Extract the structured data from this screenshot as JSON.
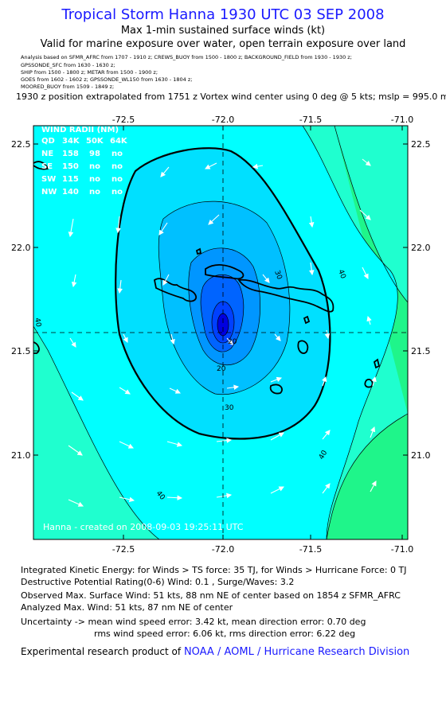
{
  "title": "Tropical Storm Hanna 1930 UTC 03 SEP 2008",
  "subtitle1": "Max 1-min sustained surface winds (kt)",
  "subtitle2": "Valid for marine exposure over water, open terrain exposure over land",
  "analysis_lines": [
    "Analysis based on  SFMR_AFRC from 1707 - 1910 z;  CREWS_BUOY from 1500 - 1800 z;  BACKGROUND_FIELD from 1930 - 1930 z;",
    "GPSSONDE_SFC from 1630 - 1630 z;",
    "SHIP from 1500 - 1800 z;  METAR from 1500 - 1900 z;",
    "GOES from 1602 - 1602 z;  GPSSONDE_WL150 from 1630 - 1804 z;",
    "MOORED_BUOY from 1509 - 1849 z;"
  ],
  "position_line": "1930 z position extrapolated from 1751 z Vortex wind center using 0 deg @ 5 kts; mslp = 995.0 mb",
  "map": {
    "lon_ticks": [
      "-72.5",
      "-72.0",
      "-71.5",
      "-71.0"
    ],
    "lat_ticks": [
      "22.5",
      "22.0",
      "21.5",
      "21.0"
    ],
    "contour_labels": [
      "30",
      "40",
      "40",
      "40",
      "40",
      "20",
      "30",
      "20"
    ],
    "watermark": "Hanna - created on 2008-09-03 19:25:11 UTC",
    "wind_radii": {
      "header": "WIND RADII (NM)",
      "columns": [
        "QD",
        "34K",
        "50K",
        "64K"
      ],
      "rows": [
        [
          "NE",
          "158",
          "98",
          "no"
        ],
        [
          "SE",
          "150",
          "no",
          "no"
        ],
        [
          "SW",
          "115",
          "no",
          "no"
        ],
        [
          "NW",
          "140",
          "no",
          "no"
        ]
      ]
    },
    "colors": {
      "cyan": "#00ffff",
      "aqua_green": "#1fffcf",
      "green": "#1ff58a",
      "light_blue": "#00c8ff",
      "mid_blue": "#0096ff",
      "blue": "#0064ff",
      "dark_blue": "#0032ff"
    }
  },
  "stats": {
    "ike": "Integrated Kinetic Energy:  for Winds > TS force: 35 TJ,  for Winds > Hurricane Force: 0 TJ",
    "dpr": "Destructive Potential Rating(0-6)   Wind: 0.1 , Surge/Waves: 3.2",
    "observed": "Observed Max. Surface Wind: 51 kts, 88 nm NE of center based on 1854 z SFMR_AFRC",
    "analyzed": "Analyzed Max. Wind: 51 kts, 87 nm NE of center",
    "uncertainty1": "Uncertainty -> mean wind speed error: 3.42 kt,   mean direction error: 0.70 deg",
    "uncertainty2": "rms wind speed error: 6.06 kt,   rms direction error: 6.22 deg"
  },
  "credit": {
    "prefix": "Experimental research product of",
    "link": "NOAA / AOML / Hurricane Research Division"
  }
}
